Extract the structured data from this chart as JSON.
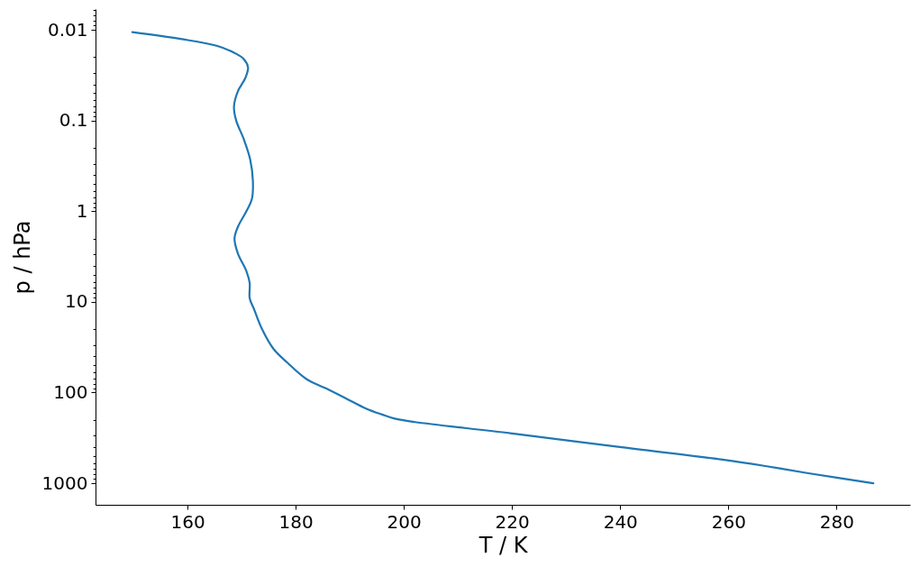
{
  "chart_data": {
    "type": "line",
    "xlabel": "T / K",
    "ylabel": "p / hPa",
    "x": [
      149.8,
      158.7,
      165.4,
      168.7,
      170.4,
      171.2,
      170.7,
      169.3,
      168.6,
      169.0,
      170.4,
      171.6,
      172.1,
      171.9,
      170.9,
      169.3,
      168.7,
      169.3,
      170.9,
      171.5,
      171.5,
      172.3,
      173.7,
      175.9,
      178.5,
      182.0,
      185.6,
      189.3,
      193.0,
      196.0,
      198.3,
      202.1,
      219.7,
      239.6,
      259.5,
      267.1,
      274.8,
      286.8
    ],
    "series": [
      {
        "color": "#1f77b4",
        "values": [
          0.0106,
          0.0126,
          0.015,
          0.018,
          0.021,
          0.026,
          0.034,
          0.048,
          0.07,
          0.1,
          0.16,
          0.27,
          0.47,
          0.74,
          1.0,
          1.5,
          2.0,
          2.9,
          4.6,
          6.2,
          9.1,
          12,
          19.5,
          33,
          47,
          71,
          90,
          116,
          150,
          175,
          194,
          212,
          281,
          397,
          555,
          650,
          776,
          1000
        ]
      }
    ],
    "log": "y",
    "xlim": [
      143,
      293.6
    ],
    "ylim": [
      1730,
      0.0059
    ],
    "xticks": [
      160,
      180,
      200,
      220,
      240,
      260,
      280
    ],
    "yticks": [
      {
        "value": 0.006,
        "label": null
      },
      {
        "value": 0.007,
        "label": null
      },
      {
        "value": 0.008,
        "label": null
      },
      {
        "value": 0.009,
        "label": null
      },
      0.01,
      {
        "value": 0.02,
        "label": null
      },
      {
        "value": 0.03,
        "label": null
      },
      {
        "value": 0.04,
        "label": null
      },
      {
        "value": 0.05,
        "label": null
      },
      {
        "value": 0.06,
        "label": null
      },
      {
        "value": 0.07,
        "label": null
      },
      {
        "value": 0.08,
        "label": null
      },
      {
        "value": 0.09,
        "label": null
      },
      0.1,
      {
        "value": 0.2,
        "label": null
      },
      {
        "value": 0.3,
        "label": null
      },
      {
        "value": 0.4,
        "label": null
      },
      {
        "value": 0.5,
        "label": null
      },
      {
        "value": 0.6,
        "label": null
      },
      {
        "value": 0.7,
        "label": null
      },
      {
        "value": 0.8,
        "label": null
      },
      {
        "value": 0.9,
        "label": null
      },
      1,
      {
        "value": 2,
        "label": null
      },
      {
        "value": 3,
        "label": null
      },
      {
        "value": 4,
        "label": null
      },
      {
        "value": 5,
        "label": null
      },
      {
        "value": 6,
        "label": null
      },
      {
        "value": 7,
        "label": null
      },
      {
        "value": 8,
        "label": null
      },
      {
        "value": 9,
        "label": null
      },
      10,
      {
        "value": 20,
        "label": null
      },
      {
        "value": 30,
        "label": null
      },
      {
        "value": 40,
        "label": null
      },
      {
        "value": 50,
        "label": null
      },
      {
        "value": 60,
        "label": null
      },
      {
        "value": 70,
        "label": null
      },
      {
        "value": 80,
        "label": null
      },
      {
        "value": 90,
        "label": null
      },
      100,
      {
        "value": 200,
        "label": null
      },
      {
        "value": 300,
        "label": null
      },
      {
        "value": 400,
        "label": null
      },
      {
        "value": 500,
        "label": null
      },
      {
        "value": 600,
        "label": null
      },
      {
        "value": 700,
        "label": null
      },
      {
        "value": 800,
        "label": null
      },
      {
        "value": 900,
        "label": null
      },
      1000
    ],
    "grid": false
  }
}
